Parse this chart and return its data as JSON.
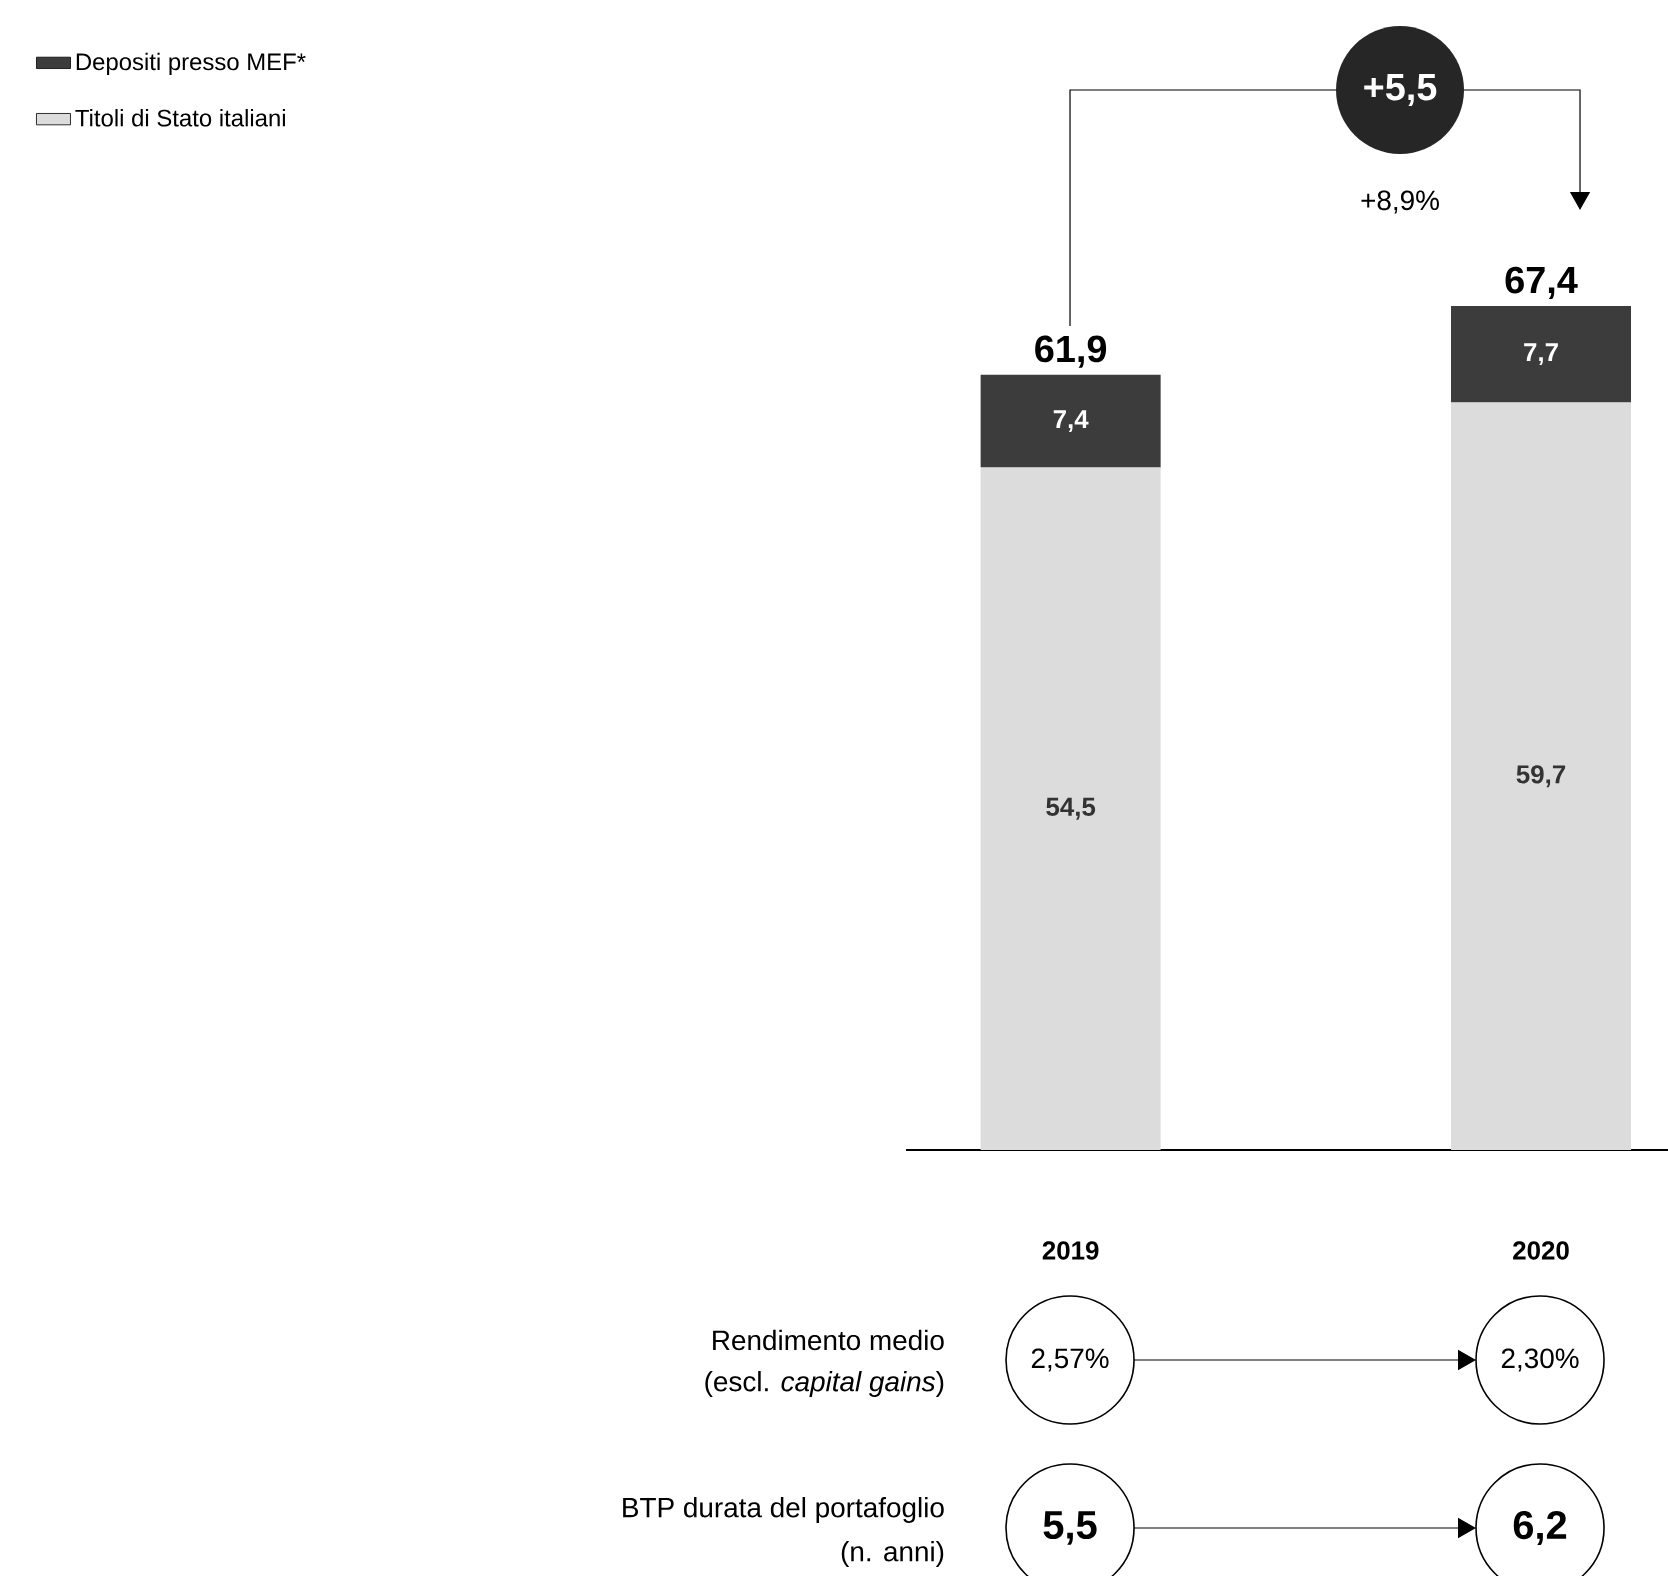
{
  "chart_data": {
    "type": "bar",
    "stacked": true,
    "categories": [
      "2019",
      "2020"
    ],
    "series": [
      {
        "name": "Titoli di Stato italiani",
        "color": "#dcdcdc",
        "values": [
          54.5,
          59.7
        ],
        "value_labels": [
          "54,5",
          "59,7"
        ]
      },
      {
        "name": "Depositi presso MEF*",
        "color": "#3c3c3c",
        "values": [
          7.4,
          7.7
        ],
        "value_labels": [
          "7,4",
          "7,7"
        ]
      }
    ],
    "totals": [
      "61,9",
      "67,4"
    ],
    "tick_labels": "x",
    "legend": "top left",
    "annotations": [
      "+5,5",
      "+8,9%",
      "Rendimento medio",
      "(escl. *capital gains*)",
      "2,57%",
      "2,30%",
      "BTP durata del portafoglio",
      "(n. anni)",
      "5,5",
      "6,2"
    ]
  }
}
